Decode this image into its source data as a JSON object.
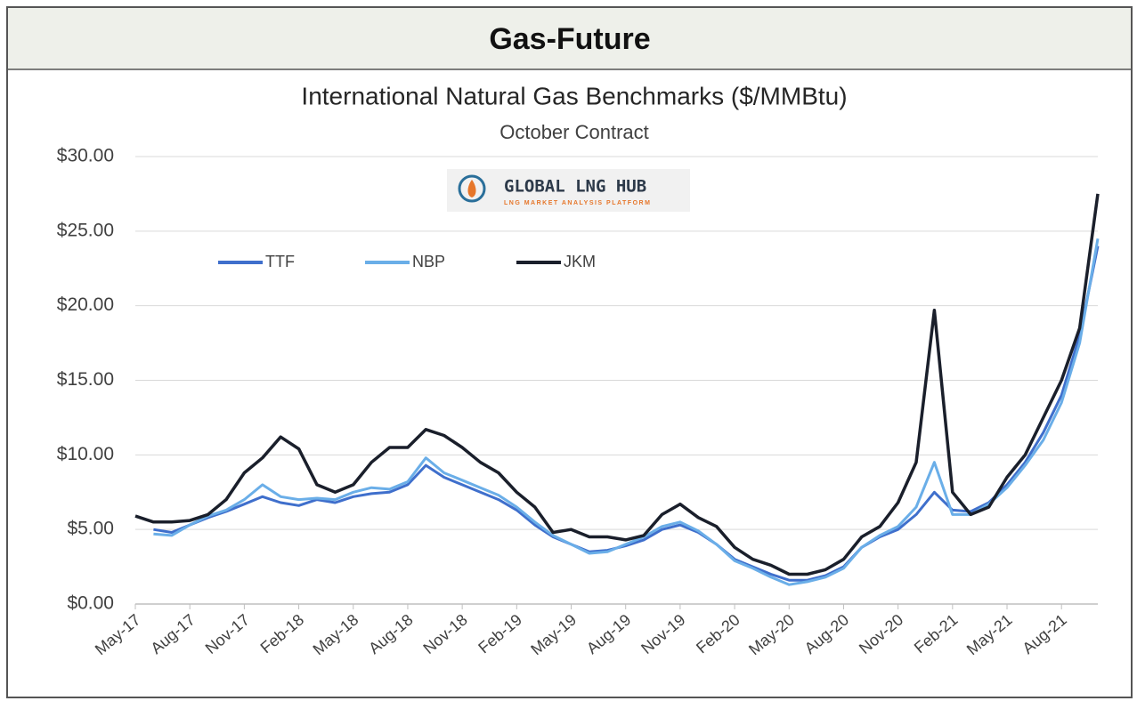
{
  "header": {
    "title": "Gas-Future"
  },
  "logo": {
    "name": "GLOBAL LNG HUB",
    "tagline": "LNG MARKET ANALYSIS PLATFORM"
  },
  "chart_data": {
    "type": "line",
    "title": "International Natural Gas Benchmarks ($/MMBtu)",
    "subtitle": "October Contract",
    "x": [
      "2017-05",
      "2017-06",
      "2017-07",
      "2017-08",
      "2017-09",
      "2017-10",
      "2017-11",
      "2017-12",
      "2018-01",
      "2018-02",
      "2018-03",
      "2018-04",
      "2018-05",
      "2018-06",
      "2018-07",
      "2018-08",
      "2018-09",
      "2018-10",
      "2018-11",
      "2018-12",
      "2019-01",
      "2019-02",
      "2019-03",
      "2019-04",
      "2019-05",
      "2019-06",
      "2019-07",
      "2019-08",
      "2019-09",
      "2019-10",
      "2019-11",
      "2019-12",
      "2020-01",
      "2020-02",
      "2020-03",
      "2020-04",
      "2020-05",
      "2020-06",
      "2020-07",
      "2020-08",
      "2020-09",
      "2020-10",
      "2020-11",
      "2020-12",
      "2021-01",
      "2021-02",
      "2021-03",
      "2021-04",
      "2021-05",
      "2021-06",
      "2021-07",
      "2021-08",
      "2021-09",
      "2021-10"
    ],
    "series": [
      {
        "name": "TTF",
        "color": "#3f6fcc",
        "values": [
          null,
          5.0,
          4.8,
          5.3,
          5.8,
          6.2,
          6.7,
          7.2,
          6.8,
          6.6,
          7.0,
          6.8,
          7.2,
          7.4,
          7.5,
          8.0,
          9.3,
          8.5,
          8.0,
          7.5,
          7.0,
          6.3,
          5.3,
          4.5,
          4.0,
          3.5,
          3.6,
          3.9,
          4.3,
          5.0,
          5.3,
          4.8,
          4.0,
          3.0,
          2.5,
          2.0,
          1.6,
          1.6,
          1.9,
          2.5,
          3.8,
          4.5,
          5.0,
          6.0,
          7.5,
          6.3,
          6.2,
          6.8,
          8.0,
          9.5,
          11.5,
          14.0,
          18.0,
          24.0
        ]
      },
      {
        "name": "NBP",
        "color": "#6aaee8",
        "values": [
          null,
          4.7,
          4.6,
          5.3,
          5.9,
          6.3,
          7.0,
          8.0,
          7.2,
          7.0,
          7.1,
          7.0,
          7.5,
          7.8,
          7.7,
          8.2,
          9.8,
          8.8,
          8.3,
          7.8,
          7.3,
          6.5,
          5.5,
          4.6,
          4.0,
          3.4,
          3.5,
          4.0,
          4.5,
          5.2,
          5.5,
          4.9,
          4.0,
          2.9,
          2.4,
          1.8,
          1.3,
          1.5,
          1.8,
          2.4,
          3.8,
          4.6,
          5.2,
          6.5,
          9.5,
          6.0,
          6.0,
          6.7,
          7.8,
          9.3,
          11.0,
          13.5,
          17.5,
          24.5
        ]
      },
      {
        "name": "JKM",
        "color": "#1a1f2b",
        "values": [
          5.9,
          5.5,
          5.5,
          5.6,
          6.0,
          7.0,
          8.8,
          9.8,
          11.2,
          10.4,
          8.0,
          7.5,
          8.0,
          9.5,
          10.5,
          10.5,
          11.7,
          11.3,
          10.5,
          9.5,
          8.8,
          7.5,
          6.5,
          4.8,
          5.0,
          4.5,
          4.5,
          4.3,
          4.6,
          6.0,
          6.7,
          5.8,
          5.2,
          3.8,
          3.0,
          2.6,
          2.0,
          2.0,
          2.3,
          3.0,
          4.5,
          5.2,
          6.8,
          9.5,
          19.7,
          7.5,
          6.0,
          6.5,
          8.5,
          10.0,
          12.5,
          15.0,
          18.5,
          27.5
        ]
      }
    ],
    "xlim": [
      "2017-05",
      "2021-10"
    ],
    "xticks": [
      {
        "value": "2017-05",
        "label": "May-17"
      },
      {
        "value": "2017-08",
        "label": "Aug-17"
      },
      {
        "value": "2017-11",
        "label": "Nov-17"
      },
      {
        "value": "2018-02",
        "label": "Feb-18"
      },
      {
        "value": "2018-05",
        "label": "May-18"
      },
      {
        "value": "2018-08",
        "label": "Aug-18"
      },
      {
        "value": "2018-11",
        "label": "Nov-18"
      },
      {
        "value": "2019-02",
        "label": "Feb-19"
      },
      {
        "value": "2019-05",
        "label": "May-19"
      },
      {
        "value": "2019-08",
        "label": "Aug-19"
      },
      {
        "value": "2019-11",
        "label": "Nov-19"
      },
      {
        "value": "2020-02",
        "label": "Feb-20"
      },
      {
        "value": "2020-05",
        "label": "May-20"
      },
      {
        "value": "2020-08",
        "label": "Aug-20"
      },
      {
        "value": "2020-11",
        "label": "Nov-20"
      },
      {
        "value": "2021-02",
        "label": "Feb-21"
      },
      {
        "value": "2021-05",
        "label": "May-21"
      },
      {
        "value": "2021-08",
        "label": "Aug-21"
      }
    ],
    "ylim": [
      0,
      30
    ],
    "yticks": [
      {
        "value": 0,
        "label": "$0.00"
      },
      {
        "value": 5,
        "label": "$5.00"
      },
      {
        "value": 10,
        "label": "$10.00"
      },
      {
        "value": 15,
        "label": "$15.00"
      },
      {
        "value": 20,
        "label": "$20.00"
      },
      {
        "value": 25,
        "label": "$25.00"
      },
      {
        "value": 30,
        "label": "$30.00"
      }
    ],
    "grid": true
  }
}
